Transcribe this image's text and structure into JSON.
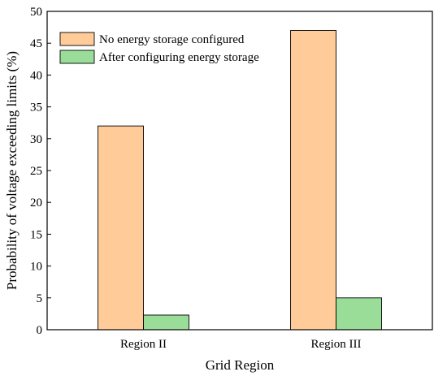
{
  "chart_data": {
    "type": "bar",
    "categories": [
      "Region II",
      "Region III"
    ],
    "series": [
      {
        "name": "No energy storage configured",
        "values": [
          32,
          47
        ],
        "color": "#FFCC99"
      },
      {
        "name": "After configuring energy storage",
        "values": [
          2.3,
          5
        ],
        "color": "#99DD99"
      }
    ],
    "xlabel": "Grid Region",
    "ylabel": "Probability of voltage exceeding limits (%)",
    "ylim": [
      0,
      50
    ],
    "yticks": [
      0,
      5,
      10,
      15,
      20,
      25,
      30,
      35,
      40,
      45,
      50
    ],
    "grid": false,
    "legend_position": "top-left"
  }
}
